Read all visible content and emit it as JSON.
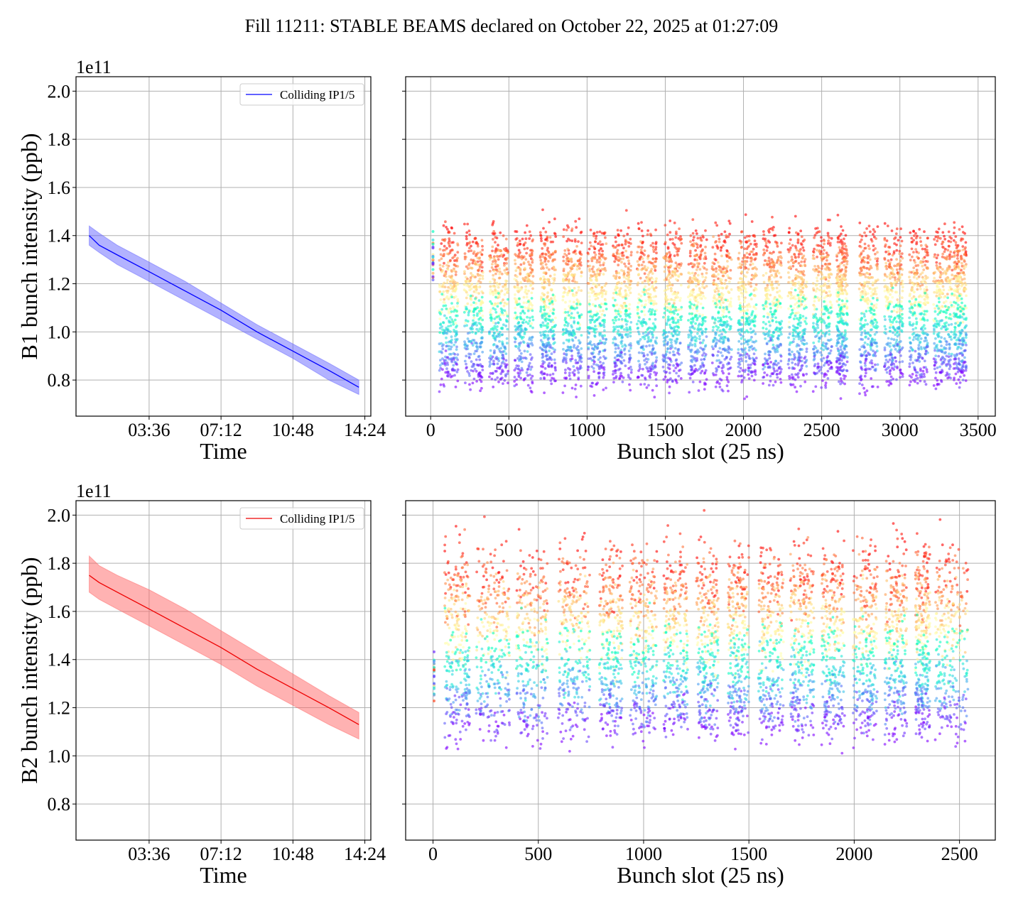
{
  "figure": {
    "title": "Fill 11211: STABLE BEAMS declared on October 22, 2025 at 01:27:09"
  },
  "chart_data": [
    {
      "id": "b1-time",
      "type": "line",
      "title": "",
      "xlabel": "Time",
      "ylabel": "B1 bunch intensity (ppb)",
      "y_offset_label": "1e11",
      "x_tick_labels": [
        "03:36",
        "07:12",
        "10:48",
        "14:24"
      ],
      "x_tick_hours": [
        3.6,
        7.2,
        10.8,
        14.4
      ],
      "xlim_hours": [
        -0.06,
        14.7
      ],
      "y_tick_labels": [
        "0.8",
        "1.0",
        "1.2",
        "1.4",
        "1.6",
        "1.8",
        "2.0"
      ],
      "y_ticks": [
        0.8,
        1.0,
        1.2,
        1.4,
        1.6,
        1.8,
        2.0
      ],
      "ylim": [
        0.65,
        2.06
      ],
      "grid": true,
      "legend": {
        "entries": [
          "Colliding IP1/5"
        ],
        "position": "top-right"
      },
      "series": [
        {
          "name": "Colliding IP1/5",
          "color": "#0000ff",
          "band_color": "#6666ff",
          "x_hours": [
            0.6,
            1.1,
            2.0,
            3.6,
            5.4,
            7.2,
            9.0,
            10.8,
            12.6,
            14.1
          ],
          "mean": [
            1.4,
            1.36,
            1.32,
            1.25,
            1.17,
            1.09,
            1.0,
            0.92,
            0.84,
            0.77
          ],
          "upper": [
            1.44,
            1.41,
            1.36,
            1.29,
            1.21,
            1.12,
            1.03,
            0.95,
            0.87,
            0.8
          ],
          "lower": [
            1.36,
            1.33,
            1.28,
            1.21,
            1.13,
            1.05,
            0.97,
            0.89,
            0.8,
            0.74
          ]
        }
      ]
    },
    {
      "id": "b1-slots",
      "type": "scatter",
      "xlabel": "Bunch slot (25 ns)",
      "ylabel": "",
      "x_tick_labels": [
        "0",
        "500",
        "1000",
        "1500",
        "2000",
        "2500",
        "3000",
        "3500"
      ],
      "x_ticks": [
        0,
        500,
        1000,
        1500,
        2000,
        2500,
        3000,
        3500
      ],
      "xlim": [
        -160,
        3610
      ],
      "ylim": [
        0.65,
        2.06
      ],
      "y_ticks": [
        0.8,
        1.0,
        1.2,
        1.4,
        1.6,
        1.8,
        2.0
      ],
      "grid": true,
      "colormap": "rainbow (time: early=red → late=purple)",
      "pilot": {
        "slot": 15,
        "range": [
          1.18,
          1.42
        ]
      },
      "trains": [
        [
          55,
          175
        ],
        [
          215,
          335
        ],
        [
          375,
          495
        ],
        [
          535,
          655
        ],
        [
          700,
          800
        ],
        [
          845,
          965
        ],
        [
          1005,
          1125
        ],
        [
          1165,
          1285
        ],
        [
          1320,
          1445
        ],
        [
          1485,
          1605
        ],
        [
          1645,
          1765
        ],
        [
          1800,
          1925
        ],
        [
          1965,
          2085
        ],
        [
          2125,
          2245
        ],
        [
          2285,
          2405
        ],
        [
          2445,
          2565
        ],
        [
          2595,
          2665
        ],
        [
          2740,
          2860
        ],
        [
          2900,
          3020
        ],
        [
          3060,
          3180
        ],
        [
          3215,
          3335
        ],
        [
          3345,
          3425
        ]
      ],
      "start_level": [
        1.28,
        1.48
      ],
      "end_level": [
        0.74,
        0.88
      ]
    },
    {
      "id": "b2-time",
      "type": "line",
      "title": "",
      "xlabel": "Time",
      "ylabel": "B2 bunch intensity (ppb)",
      "y_offset_label": "1e11",
      "x_tick_labels": [
        "03:36",
        "07:12",
        "10:48",
        "14:24"
      ],
      "x_tick_hours": [
        3.6,
        7.2,
        10.8,
        14.4
      ],
      "xlim_hours": [
        -0.06,
        14.7
      ],
      "y_tick_labels": [
        "0.8",
        "1.0",
        "1.2",
        "1.4",
        "1.6",
        "1.8",
        "2.0"
      ],
      "y_ticks": [
        0.8,
        1.0,
        1.2,
        1.4,
        1.6,
        1.8,
        2.0
      ],
      "ylim": [
        0.65,
        2.06
      ],
      "grid": true,
      "legend": {
        "entries": [
          "Colliding IP1/5"
        ],
        "position": "top-right"
      },
      "series": [
        {
          "name": "Colliding IP1/5",
          "color": "#ee0000",
          "band_color": "#ff6666",
          "x_hours": [
            0.6,
            1.1,
            2.0,
            3.6,
            5.4,
            7.2,
            9.0,
            10.8,
            12.6,
            14.1
          ],
          "mean": [
            1.75,
            1.72,
            1.68,
            1.61,
            1.53,
            1.45,
            1.36,
            1.28,
            1.2,
            1.13
          ],
          "upper": [
            1.83,
            1.79,
            1.75,
            1.69,
            1.61,
            1.52,
            1.43,
            1.34,
            1.25,
            1.18
          ],
          "lower": [
            1.68,
            1.65,
            1.61,
            1.54,
            1.46,
            1.38,
            1.29,
            1.21,
            1.13,
            1.07
          ]
        }
      ]
    },
    {
      "id": "b2-slots",
      "type": "scatter",
      "xlabel": "Bunch slot (25 ns)",
      "ylabel": "",
      "x_tick_labels": [
        "0",
        "500",
        "1000",
        "1500",
        "2000",
        "2500"
      ],
      "x_ticks": [
        0,
        500,
        1000,
        1500,
        2000,
        2500
      ],
      "xlim": [
        -130,
        2670
      ],
      "ylim": [
        0.65,
        2.06
      ],
      "y_ticks": [
        0.8,
        1.0,
        1.2,
        1.4,
        1.6,
        1.8,
        2.0
      ],
      "grid": true,
      "colormap": "rainbow (time: early=red → late=purple)",
      "pilot": {
        "slot": 5,
        "range": [
          1.22,
          1.44
        ]
      },
      "trains": [
        [
          55,
          175
        ],
        [
          205,
          365
        ],
        [
          395,
          545
        ],
        [
          595,
          745
        ],
        [
          790,
          900
        ],
        [
          935,
          1065
        ],
        [
          1095,
          1210
        ],
        [
          1250,
          1355
        ],
        [
          1400,
          1500
        ],
        [
          1545,
          1665
        ],
        [
          1695,
          1810
        ],
        [
          1845,
          1955
        ],
        [
          1995,
          2110
        ],
        [
          2145,
          2250
        ],
        [
          2290,
          2360
        ],
        [
          2385,
          2540
        ]
      ],
      "start_level": [
        1.62,
        1.96
      ],
      "end_level": [
        1.03,
        1.22
      ]
    }
  ]
}
